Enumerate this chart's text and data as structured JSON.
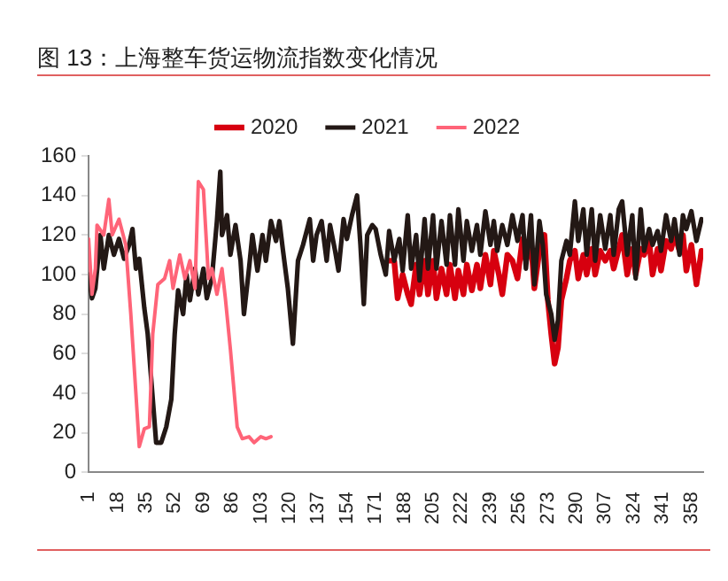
{
  "chart_data": {
    "type": "line",
    "title": "图 13：上海整车货运物流指数变化情况",
    "xlim": [
      1,
      365
    ],
    "xticks": [
      1,
      18,
      35,
      52,
      69,
      86,
      103,
      120,
      137,
      154,
      171,
      188,
      205,
      222,
      239,
      256,
      273,
      290,
      307,
      324,
      341,
      358
    ],
    "ylim": [
      0,
      160
    ],
    "yticks": [
      0,
      20,
      40,
      60,
      80,
      100,
      120,
      140,
      160
    ],
    "grid": false,
    "legend": "top",
    "marker": "none",
    "line_style": "solid",
    "series": [
      {
        "name": "2020",
        "color": "#d7000f",
        "x": [
          179,
          182,
          184,
          187,
          190,
          192,
          195,
          197,
          200,
          202,
          205,
          207,
          210,
          213,
          215,
          218,
          220,
          223,
          225,
          228,
          231,
          233,
          236,
          239,
          241,
          244,
          246,
          249,
          252,
          255,
          258,
          260,
          263,
          265,
          268,
          271,
          273,
          275,
          277,
          279,
          281,
          284,
          286,
          289,
          291,
          294,
          296,
          299,
          301,
          304,
          307,
          310,
          312,
          315,
          317,
          320,
          323,
          325,
          328,
          330,
          333,
          335,
          338,
          340,
          343,
          346,
          348,
          351,
          353,
          355,
          358,
          361,
          364
        ],
        "values": [
          107,
          107,
          88,
          100,
          90,
          85,
          105,
          90,
          107,
          90,
          107,
          88,
          103,
          90,
          105,
          88,
          102,
          90,
          105,
          92,
          105,
          93,
          110,
          95,
          112,
          100,
          90,
          110,
          107,
          98,
          118,
          107,
          117,
          93,
          112,
          120,
          87,
          70,
          55,
          63,
          87,
          98,
          107,
          112,
          98,
          110,
          100,
          113,
          100,
          112,
          107,
          112,
          103,
          113,
          120,
          100,
          113,
          100,
          113,
          110,
          117,
          100,
          113,
          102,
          117,
          113,
          120,
          112,
          120,
          102,
          115,
          95,
          112
        ]
      },
      {
        "name": "2021",
        "color": "#231815",
        "x": [
          1,
          3,
          5,
          8,
          10,
          13,
          16,
          19,
          22,
          25,
          27,
          29,
          31,
          34,
          36,
          39,
          41,
          44,
          47,
          50,
          52,
          54,
          57,
          59,
          61,
          64,
          66,
          69,
          71,
          74,
          77,
          79,
          80,
          83,
          85,
          88,
          91,
          93,
          96,
          98,
          101,
          104,
          106,
          109,
          112,
          114,
          116,
          119,
          122,
          125,
          128,
          132,
          134,
          136,
          139,
          142,
          144,
          147,
          149,
          152,
          154,
          157,
          160,
          162,
          164,
          166,
          169,
          171,
          174,
          177,
          179,
          182,
          185,
          187,
          190,
          192,
          195,
          197,
          200,
          202,
          205,
          207,
          210,
          213,
          215,
          218,
          220,
          223,
          225,
          228,
          231,
          233,
          236,
          239,
          241,
          243,
          246,
          249,
          252,
          255,
          258,
          260,
          263,
          265,
          268,
          270,
          272,
          275,
          277,
          279,
          281,
          284,
          286,
          289,
          291,
          294,
          296,
          299,
          301,
          304,
          307,
          310,
          312,
          315,
          317,
          320,
          323,
          325,
          328,
          330,
          333,
          335,
          338,
          340,
          343,
          346,
          348,
          351,
          353,
          355,
          358,
          361,
          364
        ],
        "values": [
          100,
          88,
          93,
          120,
          103,
          120,
          110,
          118,
          108,
          115,
          123,
          103,
          108,
          83,
          70,
          37,
          15,
          15,
          23,
          37,
          70,
          92,
          80,
          100,
          87,
          103,
          90,
          103,
          88,
          98,
          127,
          152,
          120,
          130,
          110,
          125,
          107,
          80,
          103,
          120,
          102,
          120,
          107,
          127,
          117,
          127,
          113,
          93,
          65,
          107,
          115,
          128,
          107,
          120,
          127,
          107,
          125,
          112,
          102,
          128,
          118,
          130,
          140,
          115,
          85,
          120,
          125,
          123,
          110,
          100,
          122,
          107,
          118,
          102,
          130,
          103,
          120,
          97,
          128,
          103,
          130,
          103,
          127,
          105,
          130,
          105,
          133,
          107,
          127,
          112,
          125,
          110,
          132,
          115,
          127,
          112,
          125,
          115,
          130,
          117,
          130,
          103,
          130,
          95,
          127,
          115,
          90,
          80,
          67,
          77,
          107,
          117,
          110,
          137,
          117,
          133,
          110,
          133,
          107,
          130,
          113,
          130,
          110,
          133,
          137,
          110,
          130,
          98,
          133,
          112,
          123,
          115,
          122,
          112,
          130,
          117,
          128,
          110,
          130,
          123,
          132,
          117,
          128
        ]
      },
      {
        "name": "2022",
        "color": "#ff6478",
        "x": [
          1,
          3,
          5,
          6,
          10,
          13,
          15,
          19,
          23,
          26,
          29,
          31,
          34,
          37,
          39,
          42,
          46,
          49,
          51,
          55,
          58,
          61,
          64,
          66,
          69,
          72,
          74,
          77,
          80,
          82,
          85,
          89,
          92,
          96,
          99,
          103,
          106,
          109
        ],
        "values": [
          118,
          90,
          103,
          125,
          120,
          138,
          120,
          128,
          115,
          80,
          40,
          13,
          22,
          23,
          70,
          95,
          98,
          107,
          93,
          110,
          98,
          107,
          93,
          147,
          143,
          98,
          103,
          90,
          103,
          88,
          62,
          23,
          17,
          18,
          15,
          18,
          17,
          18
        ]
      }
    ]
  }
}
